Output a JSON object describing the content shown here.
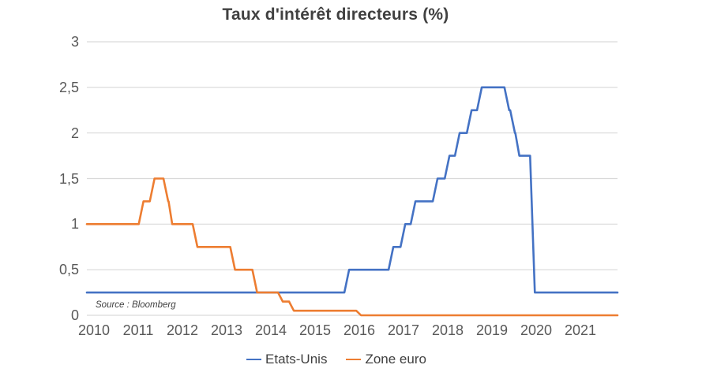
{
  "title": "Taux d'intérêt directeurs (%)",
  "source": "Source : Bloomberg",
  "colors": {
    "etats_unis": "#4472C4",
    "zone_euro": "#ED7D31",
    "gridline": "#D9D9D9",
    "axis_text": "#595959",
    "title_text": "#404040"
  },
  "legend": [
    {
      "label": "Etats-Unis",
      "color": "#4472C4"
    },
    {
      "label": "Zone euro",
      "color": "#ED7D31"
    }
  ],
  "y_axis": {
    "ticks": [
      {
        "label": "3",
        "value": 3
      },
      {
        "label": "2,5",
        "value": 2.5
      },
      {
        "label": "2",
        "value": 2
      },
      {
        "label": "1,5",
        "value": 1.5
      },
      {
        "label": "1",
        "value": 1
      },
      {
        "label": "0,5",
        "value": 0.5
      },
      {
        "label": "0",
        "value": 0
      }
    ]
  },
  "x_axis": {
    "ticks": [
      {
        "label": "2010",
        "year": 2010
      },
      {
        "label": "2011",
        "year": 2011
      },
      {
        "label": "2012",
        "year": 2012
      },
      {
        "label": "2013",
        "year": 2013
      },
      {
        "label": "2014",
        "year": 2014
      },
      {
        "label": "2015",
        "year": 2015
      },
      {
        "label": "2016",
        "year": 2016
      },
      {
        "label": "2017",
        "year": 2017
      },
      {
        "label": "2018",
        "year": 2018
      },
      {
        "label": "2019",
        "year": 2019
      },
      {
        "label": "2020",
        "year": 2020
      },
      {
        "label": "2021",
        "year": 2021
      }
    ]
  },
  "chart_data": {
    "type": "line",
    "title": "Taux d'intérêt directeurs (%)",
    "xlabel": "",
    "ylabel": "",
    "x_range": [
      2010,
      2022
    ],
    "y_range": [
      0,
      3
    ],
    "grid": true,
    "legend_position": "bottom",
    "series": [
      {
        "name": "Etats-Unis",
        "color": "#4472C4",
        "unit": "percent",
        "step_points": [
          [
            2010.0,
            0.25
          ],
          [
            2015.93,
            0.5
          ],
          [
            2016.93,
            0.75
          ],
          [
            2017.2,
            1.0
          ],
          [
            2017.43,
            1.25
          ],
          [
            2017.93,
            1.5
          ],
          [
            2018.2,
            1.75
          ],
          [
            2018.43,
            2.0
          ],
          [
            2018.7,
            2.25
          ],
          [
            2018.93,
            2.5
          ],
          [
            2019.55,
            2.25
          ],
          [
            2019.68,
            2.0
          ],
          [
            2019.78,
            1.75
          ],
          [
            2020.13,
            0.25
          ]
        ]
      },
      {
        "name": "Zone euro",
        "color": "#ED7D31",
        "unit": "percent",
        "step_points": [
          [
            2010.0,
            1.0
          ],
          [
            2011.28,
            1.25
          ],
          [
            2011.53,
            1.5
          ],
          [
            2011.84,
            1.25
          ],
          [
            2011.93,
            1.0
          ],
          [
            2012.5,
            0.75
          ],
          [
            2013.35,
            0.5
          ],
          [
            2013.85,
            0.25
          ],
          [
            2014.43,
            0.15
          ],
          [
            2014.68,
            0.05
          ],
          [
            2016.2,
            0.0
          ]
        ]
      }
    ]
  }
}
